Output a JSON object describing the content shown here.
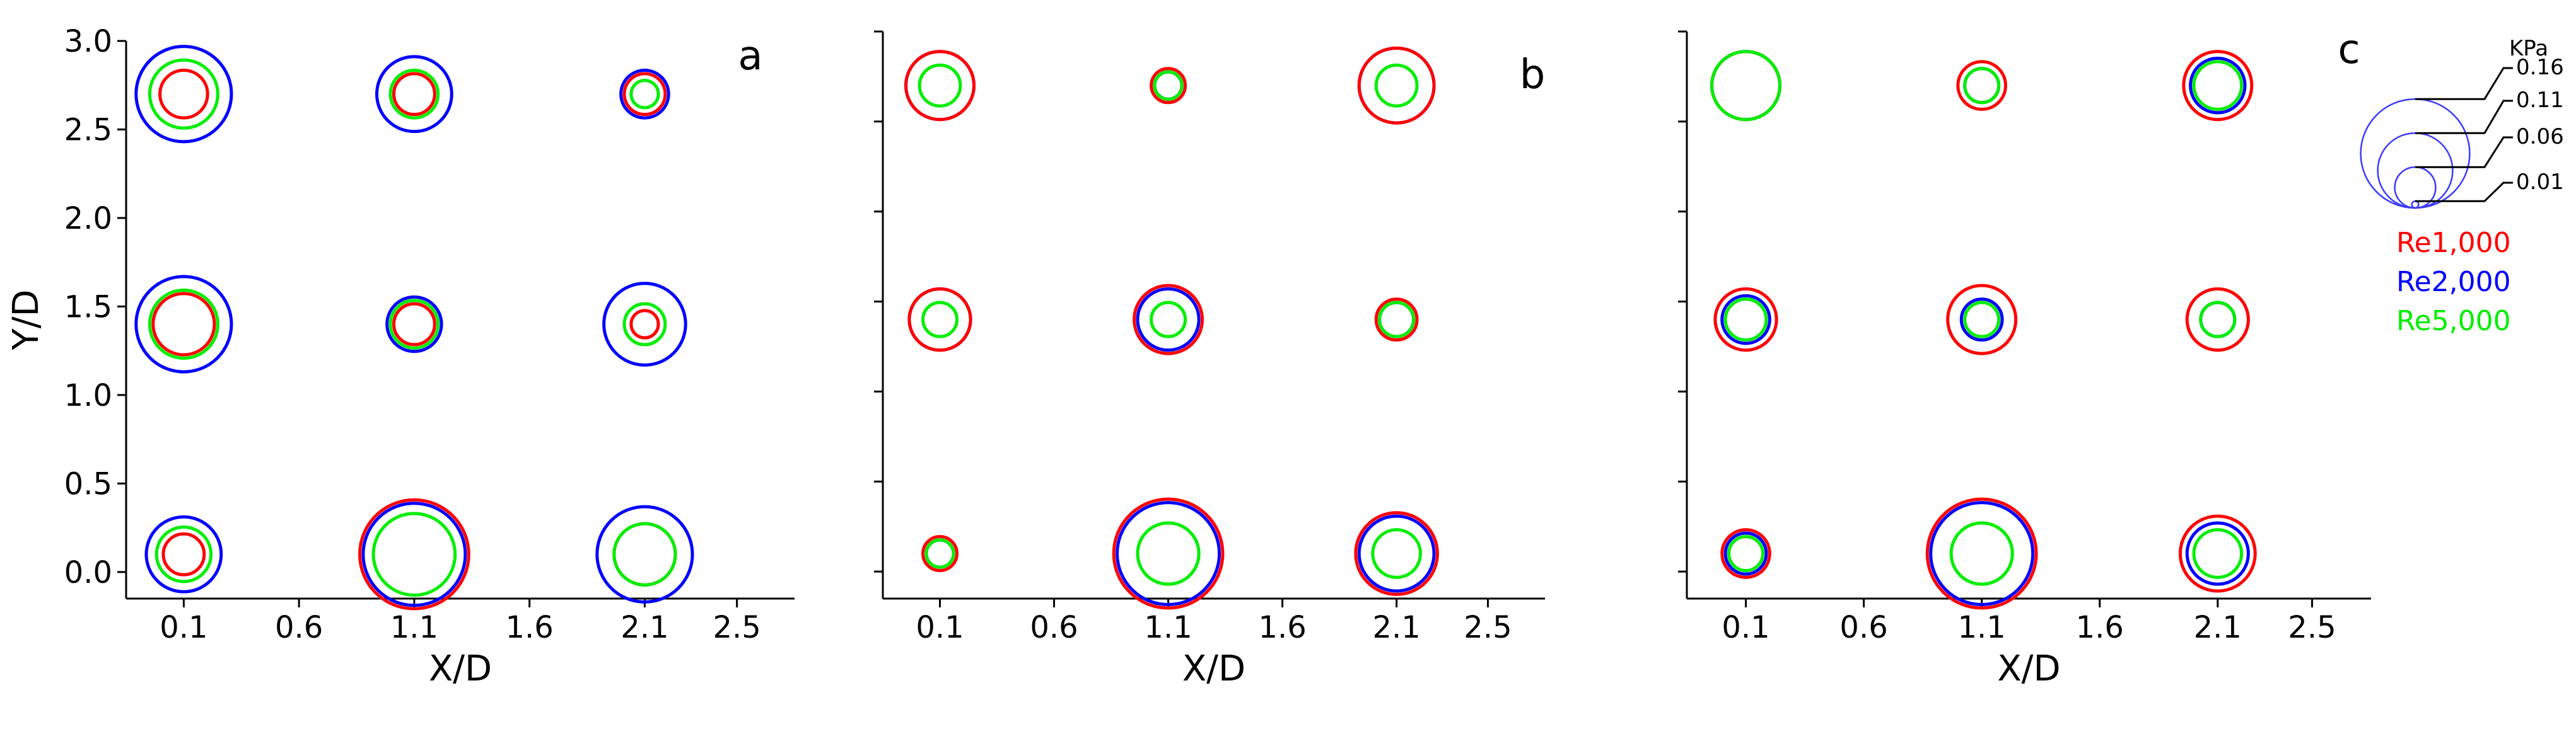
{
  "chart_data": [
    {
      "type": "scatter",
      "panel": "a",
      "xlabel": "X/D",
      "ylabel": "Y/D",
      "xlim": [
        -0.15,
        2.75
      ],
      "ylim": [
        -0.15,
        3.0
      ],
      "xticks": [
        "0.1",
        "0.6",
        "1.1",
        "1.6",
        "2.1",
        "2.5"
      ],
      "yticks": [
        "0.0",
        "0.5",
        "1.0",
        "1.5",
        "2.0",
        "2.5",
        "3.0"
      ],
      "marker_encoding": "circle radius proportional to pressure (KPa)",
      "series": [
        {
          "name": "Re1,000",
          "color": "#ff0000",
          "points": [
            {
              "x": 0.1,
              "y": 2.7,
              "value": 0.07
            },
            {
              "x": 1.1,
              "y": 2.7,
              "value": 0.06
            },
            {
              "x": 2.1,
              "y": 2.7,
              "value": 0.06
            },
            {
              "x": 0.1,
              "y": 1.4,
              "value": 0.09
            },
            {
              "x": 1.1,
              "y": 1.4,
              "value": 0.06
            },
            {
              "x": 2.1,
              "y": 1.4,
              "value": 0.04
            },
            {
              "x": 0.1,
              "y": 0.1,
              "value": 0.06
            },
            {
              "x": 1.1,
              "y": 0.1,
              "value": 0.16
            },
            {
              "x": 2.1,
              "y": 0.1,
              "value": 0.09
            }
          ]
        },
        {
          "name": "Re2,000",
          "color": "#0000ff",
          "points": [
            {
              "x": 0.1,
              "y": 2.7,
              "value": 0.14
            },
            {
              "x": 1.1,
              "y": 2.7,
              "value": 0.11
            },
            {
              "x": 2.1,
              "y": 2.7,
              "value": 0.07
            },
            {
              "x": 0.1,
              "y": 1.4,
              "value": 0.14
            },
            {
              "x": 1.1,
              "y": 1.4,
              "value": 0.08
            },
            {
              "x": 2.1,
              "y": 1.4,
              "value": 0.12
            },
            {
              "x": 0.1,
              "y": 0.1,
              "value": 0.11
            },
            {
              "x": 1.1,
              "y": 0.1,
              "value": 0.15
            },
            {
              "x": 2.1,
              "y": 0.1,
              "value": 0.14
            }
          ]
        },
        {
          "name": "Re5,000",
          "color": "#00ee00",
          "points": [
            {
              "x": 0.1,
              "y": 2.7,
              "value": 0.1
            },
            {
              "x": 1.1,
              "y": 2.7,
              "value": 0.07
            },
            {
              "x": 2.1,
              "y": 2.7,
              "value": 0.04
            },
            {
              "x": 0.1,
              "y": 1.4,
              "value": 0.1
            },
            {
              "x": 1.1,
              "y": 1.4,
              "value": 0.07
            },
            {
              "x": 2.1,
              "y": 1.4,
              "value": 0.06
            },
            {
              "x": 0.1,
              "y": 0.1,
              "value": 0.08
            },
            {
              "x": 1.1,
              "y": 0.1,
              "value": 0.12
            },
            {
              "x": 2.1,
              "y": 0.1,
              "value": 0.09
            }
          ]
        }
      ]
    },
    {
      "type": "scatter",
      "panel": "b",
      "xlabel": "X/D",
      "ylabel": "",
      "xlim": [
        -0.15,
        2.75
      ],
      "ylim": [
        -0.15,
        3.0
      ],
      "xticks": [
        "0.1",
        "0.6",
        "1.1",
        "1.6",
        "2.1",
        "2.5"
      ],
      "yticks": [],
      "marker_encoding": "circle radius proportional to pressure (KPa)",
      "series": [
        {
          "name": "Re1,000",
          "color": "#ff0000",
          "points": [
            {
              "x": 0.1,
              "y": 2.7,
              "value": 0.1
            },
            {
              "x": 1.1,
              "y": 2.7,
              "value": 0.05
            },
            {
              "x": 2.1,
              "y": 2.7,
              "value": 0.11
            },
            {
              "x": 0.1,
              "y": 1.4,
              "value": 0.09
            },
            {
              "x": 1.1,
              "y": 1.4,
              "value": 0.1
            },
            {
              "x": 2.1,
              "y": 1.4,
              "value": 0.06
            },
            {
              "x": 0.1,
              "y": 0.1,
              "value": 0.05
            },
            {
              "x": 1.1,
              "y": 0.1,
              "value": 0.16
            },
            {
              "x": 2.1,
              "y": 0.1,
              "value": 0.12
            }
          ]
        },
        {
          "name": "Re2,000",
          "color": "#0000ff",
          "points": [
            {
              "x": 0.1,
              "y": 2.7,
              "value": 0.1
            },
            {
              "x": 1.1,
              "y": 2.7,
              "value": 0.04
            },
            {
              "x": 2.1,
              "y": 2.7,
              "value": 0.11
            },
            {
              "x": 0.1,
              "y": 1.4,
              "value": 0.09
            },
            {
              "x": 1.1,
              "y": 1.4,
              "value": 0.09
            },
            {
              "x": 2.1,
              "y": 1.4,
              "value": 0.05
            },
            {
              "x": 0.1,
              "y": 0.1,
              "value": 0.04
            },
            {
              "x": 1.1,
              "y": 0.1,
              "value": 0.15
            },
            {
              "x": 2.1,
              "y": 0.1,
              "value": 0.11
            }
          ]
        },
        {
          "name": "Re5,000",
          "color": "#00ee00",
          "points": [
            {
              "x": 0.1,
              "y": 2.7,
              "value": 0.06
            },
            {
              "x": 1.1,
              "y": 2.7,
              "value": 0.04
            },
            {
              "x": 2.1,
              "y": 2.7,
              "value": 0.06
            },
            {
              "x": 0.1,
              "y": 1.4,
              "value": 0.05
            },
            {
              "x": 1.1,
              "y": 1.4,
              "value": 0.05
            },
            {
              "x": 2.1,
              "y": 1.4,
              "value": 0.05
            },
            {
              "x": 0.1,
              "y": 0.1,
              "value": 0.04
            },
            {
              "x": 1.1,
              "y": 0.1,
              "value": 0.09
            },
            {
              "x": 2.1,
              "y": 0.1,
              "value": 0.07
            }
          ]
        }
      ]
    },
    {
      "type": "scatter",
      "panel": "c",
      "xlabel": "X/D",
      "ylabel": "",
      "xlim": [
        -0.15,
        2.75
      ],
      "ylim": [
        -0.15,
        3.0
      ],
      "xticks": [
        "0.1",
        "0.6",
        "1.1",
        "1.6",
        "2.1",
        "2.5"
      ],
      "yticks": [],
      "marker_encoding": "circle radius proportional to pressure (KPa)",
      "series": [
        {
          "name": "Re1,000",
          "color": "#ff0000",
          "points": [
            {
              "x": 0.1,
              "y": 2.7,
              "value": 0.1
            },
            {
              "x": 1.1,
              "y": 2.7,
              "value": 0.07
            },
            {
              "x": 2.1,
              "y": 2.7,
              "value": 0.1
            },
            {
              "x": 0.1,
              "y": 1.4,
              "value": 0.09
            },
            {
              "x": 1.1,
              "y": 1.4,
              "value": 0.1
            },
            {
              "x": 2.1,
              "y": 1.4,
              "value": 0.09
            },
            {
              "x": 0.1,
              "y": 0.1,
              "value": 0.07
            },
            {
              "x": 1.1,
              "y": 0.1,
              "value": 0.16
            },
            {
              "x": 2.1,
              "y": 0.1,
              "value": 0.11
            }
          ]
        },
        {
          "name": "Re2,000",
          "color": "#0000ff",
          "points": [
            {
              "x": 0.1,
              "y": 2.7,
              "value": 0.1
            },
            {
              "x": 1.1,
              "y": 2.7,
              "value": 0.05
            },
            {
              "x": 2.1,
              "y": 2.7,
              "value": 0.08
            },
            {
              "x": 0.1,
              "y": 1.4,
              "value": 0.07
            },
            {
              "x": 1.1,
              "y": 1.4,
              "value": 0.06
            },
            {
              "x": 2.1,
              "y": 1.4,
              "value": 0.05
            },
            {
              "x": 0.1,
              "y": 0.1,
              "value": 0.06
            },
            {
              "x": 1.1,
              "y": 0.1,
              "value": 0.15
            },
            {
              "x": 2.1,
              "y": 0.1,
              "value": 0.09
            }
          ]
        },
        {
          "name": "Re5,000",
          "color": "#00ee00",
          "points": [
            {
              "x": 0.1,
              "y": 2.7,
              "value": 0.1
            },
            {
              "x": 1.1,
              "y": 2.7,
              "value": 0.05
            },
            {
              "x": 2.1,
              "y": 2.7,
              "value": 0.07
            },
            {
              "x": 0.1,
              "y": 1.4,
              "value": 0.06
            },
            {
              "x": 1.1,
              "y": 1.4,
              "value": 0.05
            },
            {
              "x": 2.1,
              "y": 1.4,
              "value": 0.05
            },
            {
              "x": 0.1,
              "y": 0.1,
              "value": 0.05
            },
            {
              "x": 1.1,
              "y": 0.1,
              "value": 0.09
            },
            {
              "x": 2.1,
              "y": 0.1,
              "value": 0.07
            }
          ]
        }
      ]
    }
  ],
  "legend": {
    "unit": "KPa",
    "scale_values": [
      "0.16",
      "0.11",
      "0.06",
      "0.01"
    ],
    "series": [
      {
        "name": "Re1,000",
        "color": "#ff0000"
      },
      {
        "name": "Re2,000",
        "color": "#0000ff"
      },
      {
        "name": "Re5,000",
        "color": "#00ee00"
      }
    ]
  }
}
